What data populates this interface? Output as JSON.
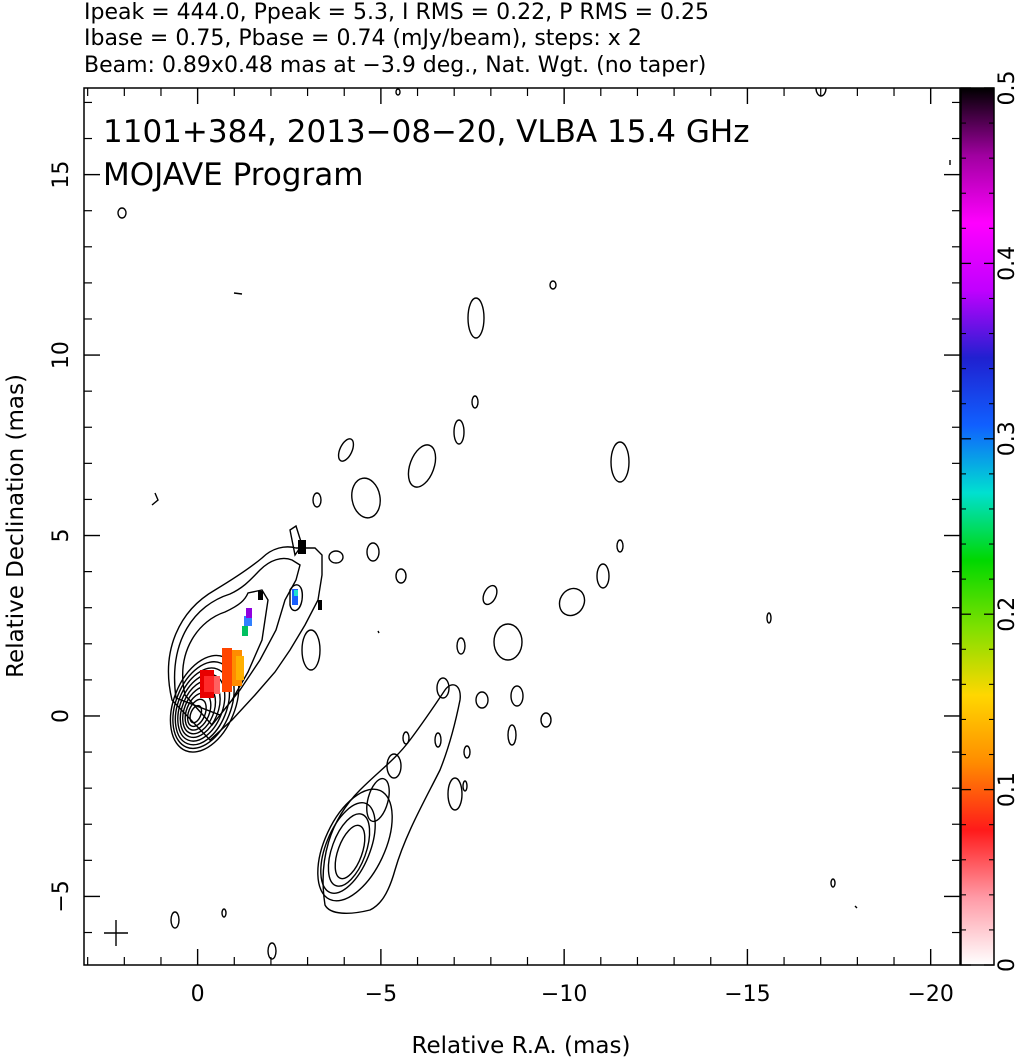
{
  "header": {
    "line1": "Ipeak = 444.0, Ppeak = 5.3, I RMS = 0.22, P RMS = 0.25",
    "line2": "Ibase = 0.75, Pbase = 0.74 (mJy/beam), steps: x 2",
    "line3": "Beam: 0.89x0.48 mas at −3.9 deg., Nat. Wgt. (no taper)"
  },
  "chart_data": {
    "type": "contour",
    "title": "1101+384, 2013−08−20, VLBA 15.4 GHz",
    "subtitle": "MOJAVE Program",
    "xlabel": "Relative R.A. (mas)",
    "ylabel": "Relative Declination (mas)",
    "xlim": [
      3.1,
      -20.8
    ],
    "ylim": [
      -6.9,
      17.4
    ],
    "x_ticks": [
      {
        "v": 0,
        "label": "0"
      },
      {
        "v": -5,
        "label": "−5"
      },
      {
        "v": -10,
        "label": "−10"
      },
      {
        "v": -15,
        "label": "−15"
      },
      {
        "v": -20,
        "label": "−20"
      }
    ],
    "y_ticks": [
      {
        "v": -5,
        "label": "−5"
      },
      {
        "v": 0,
        "label": "0"
      },
      {
        "v": 5,
        "label": "5"
      },
      {
        "v": 10,
        "label": "10"
      },
      {
        "v": 15,
        "label": "15"
      }
    ],
    "colorbar": {
      "min": 0,
      "max": 0.5,
      "ticks": [
        {
          "v": 0,
          "label": "0"
        },
        {
          "v": 0.1,
          "label": "0.1"
        },
        {
          "v": 0.2,
          "label": "0.2"
        },
        {
          "v": 0.3,
          "label": "0.3"
        },
        {
          "v": 0.4,
          "label": "0.4"
        },
        {
          "v": 0.5,
          "label": "0.5"
        }
      ],
      "stops": [
        "#ffffff",
        "#ff9aa6",
        "#ff1a1a",
        "#ff8c00",
        "#ffd700",
        "#7fe000",
        "#00d800",
        "#00e0d0",
        "#1060ff",
        "#2020d0",
        "#c000ff",
        "#ff00ff",
        "#a000a0",
        "#000000"
      ]
    },
    "core": {
      "ra": 0.05,
      "dec": 0.05,
      "levels": 9
    },
    "peak_intensity_mJy_beam": 444.0,
    "peak_polarization_mJy_beam": 5.3,
    "intensity_base_mJy_beam": 0.75,
    "polarization_base_mJy_beam": 0.74,
    "contour_step_factor": 2,
    "beam": {
      "major_mas": 0.89,
      "minor_mas": 0.48,
      "pa_deg": -3.9
    },
    "weighting": "Natural, no taper",
    "frequency_GHz": 15.4,
    "observation_date": "2013-08-20",
    "source": "1101+384"
  }
}
